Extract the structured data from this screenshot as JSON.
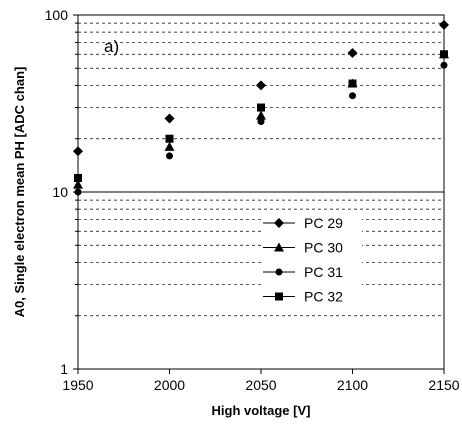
{
  "chart_data": {
    "type": "scatter",
    "panel_label": "a)",
    "xlabel": "High voltage [V]",
    "ylabel": "A0, Single electron  mean PH [ADC chan]",
    "x_ticks": [
      "1950",
      "2000",
      "2050",
      "2100",
      "2150"
    ],
    "y_ticks": [
      "1",
      "10",
      "100"
    ],
    "xlim": [
      1950,
      2150
    ],
    "ylim": [
      1,
      100
    ],
    "y_scale": "log",
    "grid": "dashed horizontal",
    "legend_position": "bottom-right",
    "x": [
      1950,
      2000,
      2050,
      2100,
      2150
    ],
    "series": [
      {
        "name": "PC 29",
        "marker": "diamond",
        "values": [
          17,
          26,
          40,
          61,
          88
        ]
      },
      {
        "name": "PC 30",
        "marker": "triangle",
        "values": [
          11,
          18,
          27,
          41,
          60
        ]
      },
      {
        "name": "PC 31",
        "marker": "circle",
        "values": [
          10,
          16,
          25,
          35,
          52
        ]
      },
      {
        "name": "PC 32",
        "marker": "square",
        "values": [
          12,
          20,
          30,
          41,
          60
        ]
      }
    ]
  }
}
